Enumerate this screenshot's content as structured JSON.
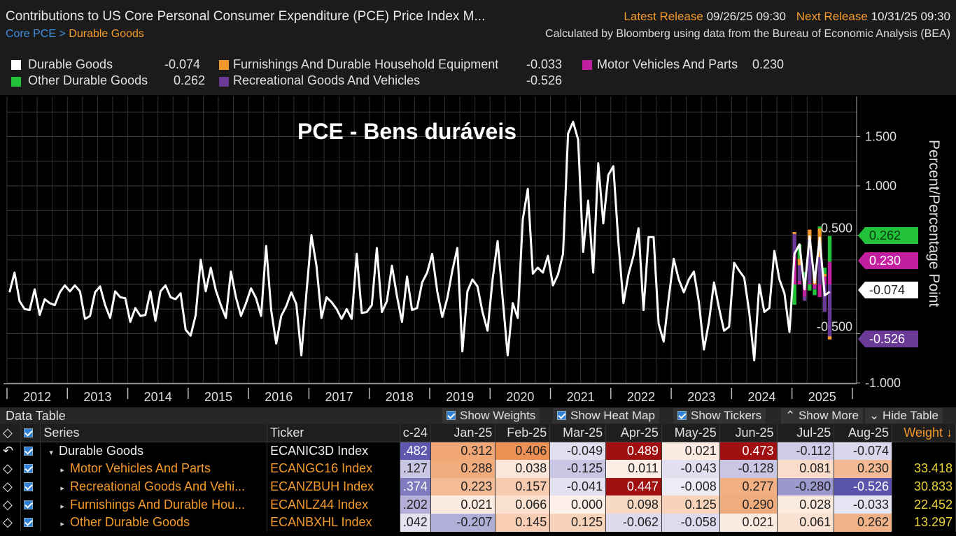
{
  "header": {
    "title": "Contributions to US Core Personal Consumer Expenditure (PCE) Price Index M...",
    "latest_release_label": "Latest Release",
    "latest_release_value": "09/26/25 09:30",
    "next_release_label": "Next Release",
    "next_release_value": "10/31/25 09:30",
    "breadcrumb_root": "Core PCE",
    "breadcrumb_sep": ">",
    "breadcrumb_current": "Durable Goods",
    "source": "Calculated by Bloomberg using data from the Bureau of Economic Analysis (BEA)"
  },
  "legend": [
    {
      "name": "Durable Goods",
      "value": "-0.074",
      "color": "#ffffff"
    },
    {
      "name": "Furnishings And Durable Household Equipment",
      "value": "-0.033",
      "color": "#f0962a"
    },
    {
      "name": "Motor Vehicles And Parts",
      "value": "0.230",
      "color": "#c21fa0"
    },
    {
      "name": "Other Durable Goods",
      "value": "0.262",
      "color": "#22c23a"
    },
    {
      "name": "Recreational Goods And Vehicles",
      "value": "-0.526",
      "color": "#6a3a96"
    }
  ],
  "overlay_title": "PCE - Bens duráveis",
  "chart_data": {
    "type": "bar+line",
    "ylabel": "Percent/Percentage Point",
    "ylim": [
      -1.0,
      1.9
    ],
    "yticks": [
      "1.500",
      "1.000",
      "0.500",
      "-0.500",
      "-1.000"
    ],
    "ytick_values": [
      1.5,
      1.0,
      0.5,
      -0.5,
      -1.0
    ],
    "grid": true,
    "x_years": [
      "2012",
      "2013",
      "2014",
      "2015",
      "2016",
      "2017",
      "2018",
      "2019",
      "2020",
      "2021",
      "2022",
      "2023",
      "2024",
      "2025"
    ],
    "line_series": {
      "name": "Durable Goods",
      "color": "#ffffff",
      "monthly_values_by_year": {
        "2012": [
          -0.08,
          0.12,
          -0.17,
          -0.25,
          -0.26,
          -0.05,
          -0.31,
          -0.15,
          -0.19,
          -0.21,
          -0.08,
          -0.01
        ],
        "2013": [
          -0.07,
          -0.01,
          -0.07,
          -0.35,
          -0.32,
          -0.08,
          -0.02,
          -0.21,
          -0.34,
          -0.07,
          -0.13,
          -0.14
        ],
        "2014": [
          -0.38,
          -0.24,
          -0.32,
          -0.31,
          -0.07,
          -0.37,
          -0.07,
          -0.01,
          -0.13,
          -0.15,
          -0.09,
          -0.46
        ],
        "2015": [
          -0.52,
          -0.31,
          0.25,
          -0.07,
          0.17,
          -0.06,
          -0.21,
          -0.34,
          0.13,
          -0.13,
          -0.32,
          -0.19
        ],
        "2016": [
          -0.04,
          -0.14,
          -0.32,
          0.39,
          -0.26,
          -0.6,
          -0.32,
          -0.22,
          -0.08,
          -0.2,
          -0.72,
          -0.09
        ],
        "2017": [
          0.5,
          0.19,
          -0.34,
          -0.13,
          -0.18,
          -0.25,
          -0.35,
          -0.25,
          -0.35,
          0.31,
          -0.29,
          -0.28
        ],
        "2018": [
          -0.21,
          0.37,
          -0.28,
          -0.17,
          0.19,
          -0.12,
          -0.38,
          0.08,
          -0.26,
          -0.24,
          0.02,
          0.12
        ],
        "2019": [
          0.31,
          -0.07,
          -0.33,
          -0.14,
          0.14,
          0.37,
          -0.68,
          -0.07,
          0.05,
          -0.02,
          -0.28,
          -0.47
        ],
        "2020": [
          0.05,
          0.44,
          -0.14,
          -0.72,
          -0.19,
          -0.34,
          0.66,
          0.97,
          0.11,
          0.17,
          0.12,
          0.29
        ],
        "2021": [
          -0.01,
          0.1,
          0.31,
          1.53,
          1.65,
          1.47,
          0.33,
          0.85,
          0.12,
          1.23,
          0.62,
          1.11
        ],
        "2022": [
          1.2,
          0.43,
          -0.19,
          0.1,
          0.29,
          0.57,
          -0.26,
          0.48,
          0.48,
          -0.4,
          -0.58,
          -0.14
        ],
        "2023": [
          0.26,
          0.05,
          -0.08,
          0.05,
          0.13,
          -0.18,
          -0.66,
          -0.38,
          0.02,
          -0.24,
          -0.47,
          -0.43
        ],
        "2024": [
          0.22,
          0.14,
          0.07,
          -0.28,
          -0.77,
          0.0,
          -0.28,
          -0.24,
          0.34,
          0.05,
          -0.09,
          -0.482
        ],
        "2025": [
          0.312,
          0.406,
          -0.049,
          0.489,
          0.021,
          0.473,
          -0.112,
          -0.074
        ]
      }
    },
    "bar_series": {
      "stacked": true,
      "months": [
        "Jan-25",
        "Feb-25",
        "Mar-25",
        "Apr-25",
        "May-25",
        "Jun-25",
        "Jul-25",
        "Aug-25"
      ],
      "series": [
        {
          "name": "Motor Vehicles And Parts",
          "color": "#c21fa0",
          "values": [
            0.288,
            0.038,
            -0.125,
            0.011,
            -0.043,
            -0.128,
            0.081,
            0.23
          ]
        },
        {
          "name": "Recreational Goods And Vehicles",
          "color": "#6a3a96",
          "values": [
            0.223,
            0.157,
            -0.041,
            0.447,
            -0.008,
            0.277,
            -0.28,
            -0.526
          ]
        },
        {
          "name": "Furnishings And Durable Household Equipment",
          "color": "#f0962a",
          "values": [
            0.021,
            0.066,
            0.0,
            0.098,
            0.125,
            0.29,
            0.028,
            -0.033
          ]
        },
        {
          "name": "Other Durable Goods",
          "color": "#22c23a",
          "values": [
            -0.207,
            0.145,
            0.125,
            -0.062,
            -0.058,
            0.021,
            0.061,
            0.262
          ]
        }
      ]
    },
    "last_value_tags": [
      {
        "value": "0.262",
        "color": "#22c23a",
        "text_color": "#0b3a10"
      },
      {
        "value": "0.230",
        "color": "#c21fa0",
        "text_color": "#ffffff"
      },
      {
        "value": "-0.074",
        "color": "#ffffff",
        "text_color": "#222222"
      },
      {
        "value": "-0.526",
        "color": "#6a3a96",
        "text_color": "#ffffff"
      }
    ]
  },
  "data_table": {
    "title": "Data Table",
    "options": [
      {
        "label": "Show Weights",
        "checked": true
      },
      {
        "label": "Show Heat Map",
        "checked": true
      },
      {
        "label": "Show Tickers",
        "checked": true
      }
    ],
    "show_more": "Show More",
    "hide_table": "Hide Table",
    "columns": [
      "Series",
      "Ticker",
      "c-24",
      "Jan-25",
      "Feb-25",
      "Mar-25",
      "Apr-25",
      "May-25",
      "Jun-25",
      "Jul-25",
      "Aug-25",
      "Weight ↓"
    ],
    "rows": [
      {
        "series": "Durable Goods",
        "expanded": true,
        "ticker": "ECANIC3D Index",
        "cells": [
          ".482",
          "0.312",
          "0.406",
          "-0.049",
          "0.489",
          "0.021",
          "0.473",
          "-0.112",
          "-0.074"
        ],
        "signs": [
          -1,
          1,
          1,
          -1,
          1,
          1,
          1,
          -1,
          -1
        ],
        "weight": ""
      },
      {
        "series": "Motor Vehicles And Parts",
        "ticker": "ECANGC16 Index",
        "cells": [
          ".127",
          "0.288",
          "0.038",
          "-0.125",
          "0.011",
          "-0.043",
          "-0.128",
          "0.081",
          "0.230"
        ],
        "signs": [
          -1,
          1,
          1,
          -1,
          1,
          -1,
          -1,
          1,
          1
        ],
        "weight": "33.418"
      },
      {
        "series": "Recreational Goods And Vehi...",
        "ticker": "ECANZBUH Index",
        "cells": [
          ".374",
          "0.223",
          "0.157",
          "-0.041",
          "0.447",
          "-0.008",
          "0.277",
          "-0.280",
          "-0.526"
        ],
        "signs": [
          -1,
          1,
          1,
          -1,
          1,
          -1,
          1,
          -1,
          -1
        ],
        "weight": "30.833"
      },
      {
        "series": "Furnishings And Durable Hou...",
        "ticker": "ECANLZ44 Index",
        "cells": [
          ".202",
          "0.021",
          "0.066",
          "0.000",
          "0.098",
          "0.125",
          "0.290",
          "0.028",
          "-0.033"
        ],
        "signs": [
          -1,
          1,
          1,
          1,
          1,
          1,
          1,
          1,
          -1
        ],
        "weight": "22.452"
      },
      {
        "series": "Other Durable Goods",
        "ticker": "ECANBXHL Index",
        "cells": [
          ".042",
          "-0.207",
          "0.145",
          "0.125",
          "-0.062",
          "-0.058",
          "0.021",
          "0.061",
          "0.262"
        ],
        "signs": [
          -1,
          -1,
          1,
          1,
          -1,
          -1,
          1,
          1,
          1
        ],
        "weight": "13.297"
      }
    ]
  }
}
